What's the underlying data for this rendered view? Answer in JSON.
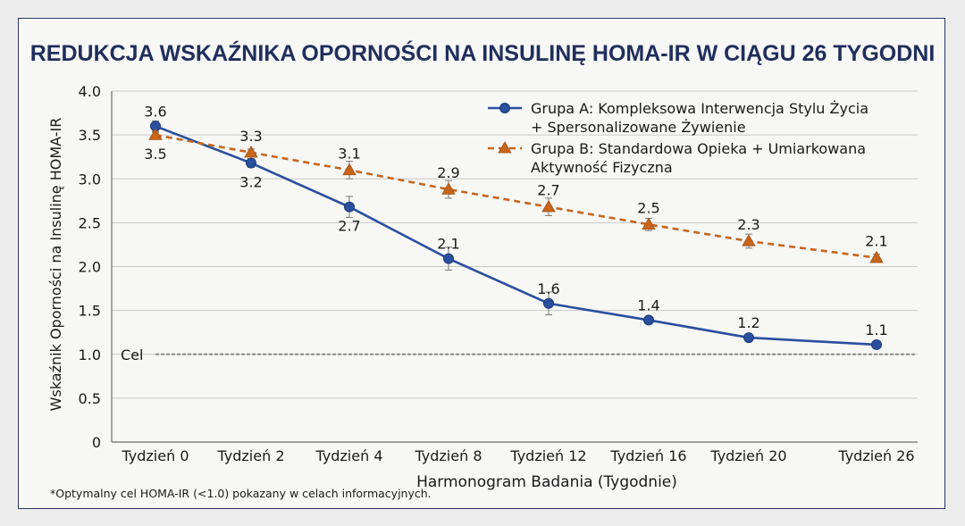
{
  "chart_data": {
    "type": "line",
    "title": "REDUKCJA WSKAŹNIKA OPORNOŚCI NA INSULINĘ HOMA-IR W CIĄGU 26 TYGODNI",
    "xlabel": "Harmonogram Badania (Tygodnie)",
    "ylabel": "Wskaźnik Oporności na Insulinę HOMA-IR",
    "ylim": [
      0,
      4.0
    ],
    "y_ticks": [
      "0",
      "0.5",
      "1.0",
      "1.5",
      "2.0",
      "2.5",
      "3.0",
      "3.5",
      "4.0"
    ],
    "y_tick_values": [
      0,
      0.5,
      1.0,
      1.5,
      2.0,
      2.5,
      3.0,
      3.5,
      4.0
    ],
    "x": [
      0,
      2,
      4,
      8,
      12,
      16,
      20,
      26
    ],
    "categories": [
      "Tydzień 0",
      "Tydzień 2",
      "Tydzień 4",
      "Tydzień 8",
      "Tydzień 12",
      "Tydzień 16",
      "Tydzień 20",
      "Tydzień 26"
    ],
    "grid": true,
    "legend_position": "top-right",
    "series": [
      {
        "name": "Grupa A: Kompleksowa Interwencja Stylu Życia + Spersonalizowane Żywienie",
        "legend_lines": [
          "Grupa A: Kompleksowa Interwencja Stylu Życia",
          "+ Spersonalizowane Żywienie"
        ],
        "values": [
          3.6,
          3.18,
          2.68,
          2.09,
          1.58,
          1.39,
          1.19,
          1.11
        ],
        "labels": [
          "3.6",
          "3.2",
          "2.7",
          "2.1",
          "1.6",
          "1.4",
          "1.2",
          "1.1"
        ],
        "error": [
          0.06,
          0.05,
          0.12,
          0.13,
          0.13,
          0.02,
          0.02,
          0.02
        ],
        "color": "#2a4f9e",
        "line_style": "solid",
        "marker": "circle"
      },
      {
        "name": "Grupa B: Standardowa Opieka + Umiarkowana Aktywność Fizyczna",
        "legend_lines": [
          "Grupa B: Standardowa Opieka + Umiarkowana",
          "Aktywność Fizyczna"
        ],
        "values": [
          3.5,
          3.3,
          3.1,
          2.88,
          2.68,
          2.48,
          2.29,
          2.1
        ],
        "labels": [
          "3.5",
          "3.3",
          "3.1",
          "2.9",
          "2.7",
          "2.5",
          "2.3",
          "2.1"
        ],
        "error": [
          0.03,
          0.04,
          0.1,
          0.1,
          0.1,
          0.07,
          0.08,
          0.04
        ],
        "color": "#c8651b",
        "line_style": "dashed",
        "marker": "triangle"
      }
    ],
    "target": {
      "value": 1.0,
      "label": "Cel"
    },
    "footnote": "*Optymalny cel HOMA-IR (<1.0) pokazany w celach informacyjnych."
  }
}
